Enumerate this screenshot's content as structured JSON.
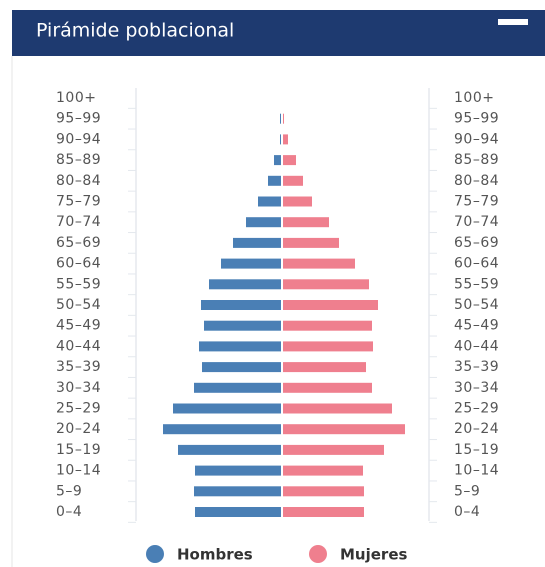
{
  "chart_data": {
    "type": "pyramid",
    "title": "Pirámide poblacional",
    "categories": [
      "100+",
      "95–99",
      "90–94",
      "85–89",
      "80–84",
      "75–79",
      "70–74",
      "65–69",
      "60–64",
      "55–59",
      "50–54",
      "45–49",
      "40–44",
      "35–39",
      "30–34",
      "25–29",
      "20–24",
      "15–19",
      "10–14",
      "5–9",
      "0–4"
    ],
    "series": [
      {
        "name": "Hombres",
        "color": "#4a7fb5",
        "values": [
          0,
          1,
          1,
          7,
          13,
          23,
          35,
          48,
          60,
          72,
          80,
          77,
          82,
          79,
          87,
          108,
          118,
          103,
          86,
          87,
          86
        ]
      },
      {
        "name": "Mujeres",
        "color": "#ef7f8e",
        "values": [
          0,
          1,
          5,
          13,
          20,
          29,
          46,
          56,
          72,
          86,
          95,
          89,
          90,
          83,
          89,
          109,
          122,
          101,
          80,
          81,
          81
        ]
      }
    ]
  }
}
